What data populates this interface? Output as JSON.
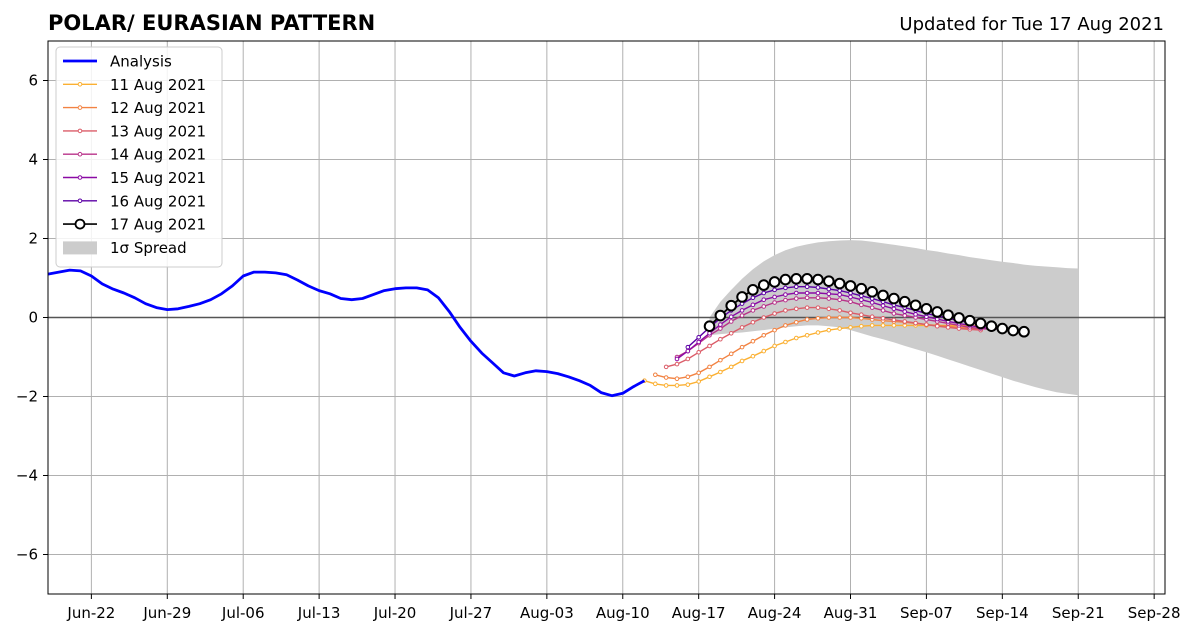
{
  "chart_data": {
    "type": "line",
    "title": "POLAR/ EURASIAN  PATTERN",
    "subtitle": "Updated for Tue 17 Aug 2021",
    "xlim": [
      "2021-06-18",
      "2021-09-29"
    ],
    "ylim": [
      -7,
      7
    ],
    "x_ticks": [
      {
        "date": "2021-06-22",
        "label": "Jun-22"
      },
      {
        "date": "2021-06-29",
        "label": "Jun-29"
      },
      {
        "date": "2021-07-06",
        "label": "Jul-06"
      },
      {
        "date": "2021-07-13",
        "label": "Jul-13"
      },
      {
        "date": "2021-07-20",
        "label": "Jul-20"
      },
      {
        "date": "2021-07-27",
        "label": "Jul-27"
      },
      {
        "date": "2021-08-03",
        "label": "Aug-03"
      },
      {
        "date": "2021-08-10",
        "label": "Aug-10"
      },
      {
        "date": "2021-08-17",
        "label": "Aug-17"
      },
      {
        "date": "2021-08-24",
        "label": "Aug-24"
      },
      {
        "date": "2021-08-31",
        "label": "Aug-31"
      },
      {
        "date": "2021-09-07",
        "label": "Sep-07"
      },
      {
        "date": "2021-09-14",
        "label": "Sep-14"
      },
      {
        "date": "2021-09-21",
        "label": "Sep-21"
      },
      {
        "date": "2021-09-28",
        "label": "Sep-28"
      }
    ],
    "y_ticks": [
      {
        "value": 6,
        "label": "6"
      },
      {
        "value": 4,
        "label": "4"
      },
      {
        "value": 2,
        "label": "2"
      },
      {
        "value": 0,
        "label": "0"
      },
      {
        "value": -2,
        "label": "−2"
      },
      {
        "value": -4,
        "label": "−4"
      },
      {
        "value": -6,
        "label": "−6"
      }
    ],
    "grid": true,
    "legend_position": "top-left",
    "analysis": {
      "name": "Analysis",
      "color": "#0000ff",
      "start_date": "2021-06-18",
      "values": [
        1.1,
        1.15,
        1.2,
        1.18,
        1.05,
        0.85,
        0.72,
        0.62,
        0.5,
        0.35,
        0.25,
        0.2,
        0.22,
        0.28,
        0.35,
        0.45,
        0.6,
        0.8,
        1.05,
        1.15,
        1.15,
        1.13,
        1.08,
        0.95,
        0.8,
        0.68,
        0.6,
        0.48,
        0.45,
        0.48,
        0.58,
        0.68,
        0.73,
        0.75,
        0.75,
        0.7,
        0.5,
        0.15,
        -0.25,
        -0.6,
        -0.9,
        -1.15,
        -1.4,
        -1.48,
        -1.4,
        -1.35,
        -1.37,
        -1.42,
        -1.5,
        -1.6,
        -1.72,
        -1.9,
        -1.98,
        -1.92,
        -1.75,
        -1.6
      ]
    },
    "forecasts": [
      {
        "name": "11 Aug 2021",
        "color": "#fbb032",
        "start_date": "2021-08-12",
        "values": [
          -1.6,
          -1.68,
          -1.72,
          -1.72,
          -1.7,
          -1.62,
          -1.5,
          -1.38,
          -1.25,
          -1.1,
          -0.98,
          -0.85,
          -0.72,
          -0.62,
          -0.52,
          -0.45,
          -0.38,
          -0.32,
          -0.28,
          -0.25,
          -0.22,
          -0.2,
          -0.2,
          -0.2,
          -0.2,
          -0.2,
          -0.2,
          -0.2,
          -0.2,
          -0.2,
          -0.2,
          -0.2
        ]
      },
      {
        "name": "12 Aug 2021",
        "color": "#f28343",
        "start_date": "2021-08-13",
        "values": [
          -1.45,
          -1.52,
          -1.55,
          -1.5,
          -1.4,
          -1.25,
          -1.08,
          -0.92,
          -0.75,
          -0.6,
          -0.45,
          -0.32,
          -0.2,
          -0.12,
          -0.05,
          -0.02,
          0.0,
          0.0,
          0.0,
          -0.02,
          -0.05,
          -0.08,
          -0.1,
          -0.12,
          -0.15,
          -0.18,
          -0.2,
          -0.22,
          -0.25,
          -0.27,
          -0.3
        ]
      },
      {
        "name": "13 Aug 2021",
        "color": "#db5c68",
        "start_date": "2021-08-14",
        "values": [
          -1.25,
          -1.18,
          -1.05,
          -0.88,
          -0.72,
          -0.55,
          -0.4,
          -0.25,
          -0.12,
          0.0,
          0.1,
          0.18,
          0.22,
          0.25,
          0.25,
          0.22,
          0.18,
          0.12,
          0.07,
          0.02,
          -0.02,
          -0.06,
          -0.1,
          -0.14,
          -0.18,
          -0.22,
          -0.25,
          -0.28,
          -0.3,
          -0.32
        ]
      },
      {
        "name": "14 Aug 2021",
        "color": "#b83289",
        "start_date": "2021-08-15",
        "values": [
          -1.0,
          -0.85,
          -0.65,
          -0.45,
          -0.28,
          -0.1,
          0.05,
          0.18,
          0.28,
          0.38,
          0.44,
          0.48,
          0.5,
          0.5,
          0.48,
          0.45,
          0.4,
          0.32,
          0.25,
          0.18,
          0.1,
          0.05,
          0.0,
          -0.05,
          -0.1,
          -0.15,
          -0.2,
          -0.25,
          -0.28,
          -0.3
        ]
      },
      {
        "name": "15 Aug 2021",
        "color": "#8b0aa5",
        "start_date": "2021-08-15",
        "values": [
          -1.05,
          -0.85,
          -0.62,
          -0.4,
          -0.18,
          0.02,
          0.18,
          0.32,
          0.45,
          0.52,
          0.58,
          0.62,
          0.62,
          0.62,
          0.6,
          0.58,
          0.52,
          0.45,
          0.38,
          0.3,
          0.22,
          0.15,
          0.08,
          0.02,
          -0.04,
          -0.1,
          -0.15,
          -0.2,
          -0.25,
          -0.28,
          -0.3
        ]
      },
      {
        "name": "16 Aug 2021",
        "color": "#5c01a6",
        "start_date": "2021-08-16",
        "values": [
          -0.75,
          -0.5,
          -0.25,
          -0.02,
          0.18,
          0.35,
          0.5,
          0.62,
          0.7,
          0.75,
          0.78,
          0.78,
          0.76,
          0.72,
          0.68,
          0.62,
          0.55,
          0.48,
          0.4,
          0.32,
          0.25,
          0.18,
          0.1,
          0.04,
          -0.02,
          -0.08,
          -0.13,
          -0.18,
          -0.22,
          -0.25
        ]
      },
      {
        "name": "17 Aug 2021",
        "color": "#000000",
        "start_date": "2021-08-18",
        "marker": "open-circle",
        "values": [
          -0.22,
          0.05,
          0.3,
          0.52,
          0.7,
          0.82,
          0.9,
          0.96,
          0.98,
          0.98,
          0.96,
          0.92,
          0.86,
          0.8,
          0.73,
          0.65,
          0.56,
          0.48,
          0.4,
          0.31,
          0.22,
          0.14,
          0.06,
          -0.01,
          -0.08,
          -0.15,
          -0.22,
          -0.28,
          -0.33,
          -0.36
        ]
      }
    ],
    "spread": {
      "name": "1σ Spread",
      "color": "#cccccc",
      "start_date": "2021-08-18",
      "upper": [
        0.0,
        0.4,
        0.7,
        0.98,
        1.22,
        1.42,
        1.58,
        1.7,
        1.79,
        1.85,
        1.9,
        1.93,
        1.95,
        1.96,
        1.95,
        1.92,
        1.88,
        1.84,
        1.8,
        1.76,
        1.71,
        1.67,
        1.62,
        1.58,
        1.53,
        1.49,
        1.45,
        1.41,
        1.38,
        1.34,
        1.31,
        1.29,
        1.27,
        1.25,
        1.24
      ],
      "lower": [
        -0.45,
        -0.42,
        -0.4,
        -0.38,
        -0.35,
        -0.32,
        -0.28,
        -0.25,
        -0.22,
        -0.2,
        -0.2,
        -0.22,
        -0.25,
        -0.32,
        -0.4,
        -0.48,
        -0.55,
        -0.63,
        -0.72,
        -0.8,
        -0.88,
        -0.97,
        -1.06,
        -1.15,
        -1.24,
        -1.33,
        -1.42,
        -1.51,
        -1.6,
        -1.68,
        -1.76,
        -1.83,
        -1.89,
        -1.93,
        -1.97
      ]
    }
  }
}
